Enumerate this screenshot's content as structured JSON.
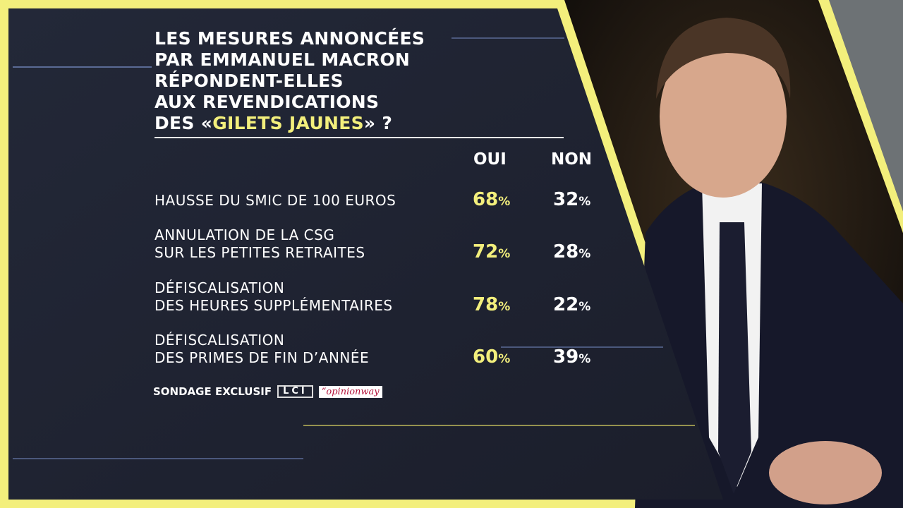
{
  "colors": {
    "accent": "#f3ef7c",
    "panel": "#1f2331",
    "text": "#ffffff"
  },
  "title": {
    "line1": "LES MESURES ANNONCÉES",
    "line2": "PAR EMMANUEL MACRON",
    "line3": "RÉPONDENT-ELLES",
    "line4": "AUX REVENDICATIONS",
    "line5_pre": "DES «",
    "line5_hl": "GILETS JAUNES",
    "line5_post": "» ?"
  },
  "chart_data": {
    "type": "table",
    "columns": [
      "OUI",
      "NON"
    ],
    "rows": [
      {
        "label_lines": [
          "HAUSSE DU SMIC DE 100 EUROS"
        ],
        "oui": 68,
        "non": 32
      },
      {
        "label_lines": [
          "ANNULATION DE LA CSG",
          "SUR LES PETITES RETRAITES"
        ],
        "oui": 72,
        "non": 28
      },
      {
        "label_lines": [
          "DÉFISCALISATION",
          "DES HEURES SUPPLÉMENTAIRES"
        ],
        "oui": 78,
        "non": 22
      },
      {
        "label_lines": [
          "DÉFISCALISATION",
          "DES PRIMES DE FIN D’ANNÉE"
        ],
        "oui": 60,
        "non": 39
      }
    ],
    "unit": "%"
  },
  "footer": {
    "label": "SONDAGE EXCLUSIF",
    "lci_logo": "LCI",
    "opinionway_logo": "“opinionway"
  }
}
